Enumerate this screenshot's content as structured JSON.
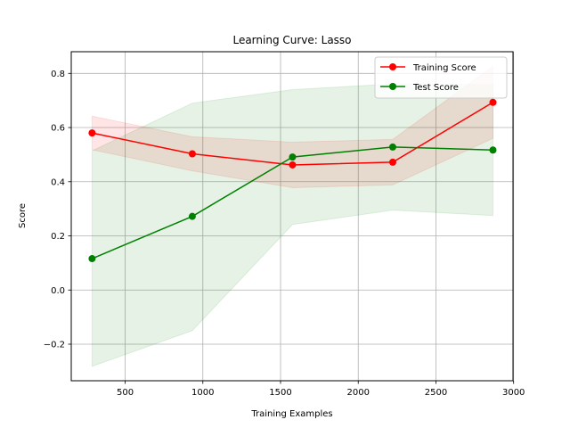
{
  "chart_data": {
    "type": "line",
    "title": "Learning Curve: Lasso",
    "xlabel": "Training Examples",
    "ylabel": "Score",
    "xlim": [
      153,
      2996
    ],
    "ylim": [
      -0.335,
      0.88
    ],
    "xticks": [
      500,
      1000,
      1500,
      2000,
      2500,
      3000
    ],
    "xtick_labels": [
      "500",
      "1000",
      "1500",
      "2000",
      "2500",
      "3000"
    ],
    "yticks": [
      -0.2,
      0.0,
      0.2,
      0.4,
      0.6,
      0.8
    ],
    "ytick_labels": [
      "−0.2",
      "0.0",
      "0.2",
      "0.4",
      "0.6",
      "0.8"
    ],
    "grid": true,
    "legend_position": "top-right",
    "x": [
      287,
      932,
      1577,
      2222,
      2867
    ],
    "series": [
      {
        "name": "Training Score",
        "color": "#ff0000",
        "values": [
          0.58,
          0.503,
          0.462,
          0.472,
          0.693
        ],
        "band_lower": [
          0.518,
          0.44,
          0.378,
          0.388,
          0.56
        ],
        "band_upper": [
          0.642,
          0.566,
          0.546,
          0.556,
          0.826
        ]
      },
      {
        "name": "Test Score",
        "color": "#008000",
        "values": [
          0.116,
          0.272,
          0.491,
          0.528,
          0.517
        ],
        "band_lower": [
          -0.282,
          -0.15,
          0.242,
          0.295,
          0.275
        ],
        "band_upper": [
          0.514,
          0.69,
          0.74,
          0.761,
          0.759
        ]
      }
    ]
  }
}
